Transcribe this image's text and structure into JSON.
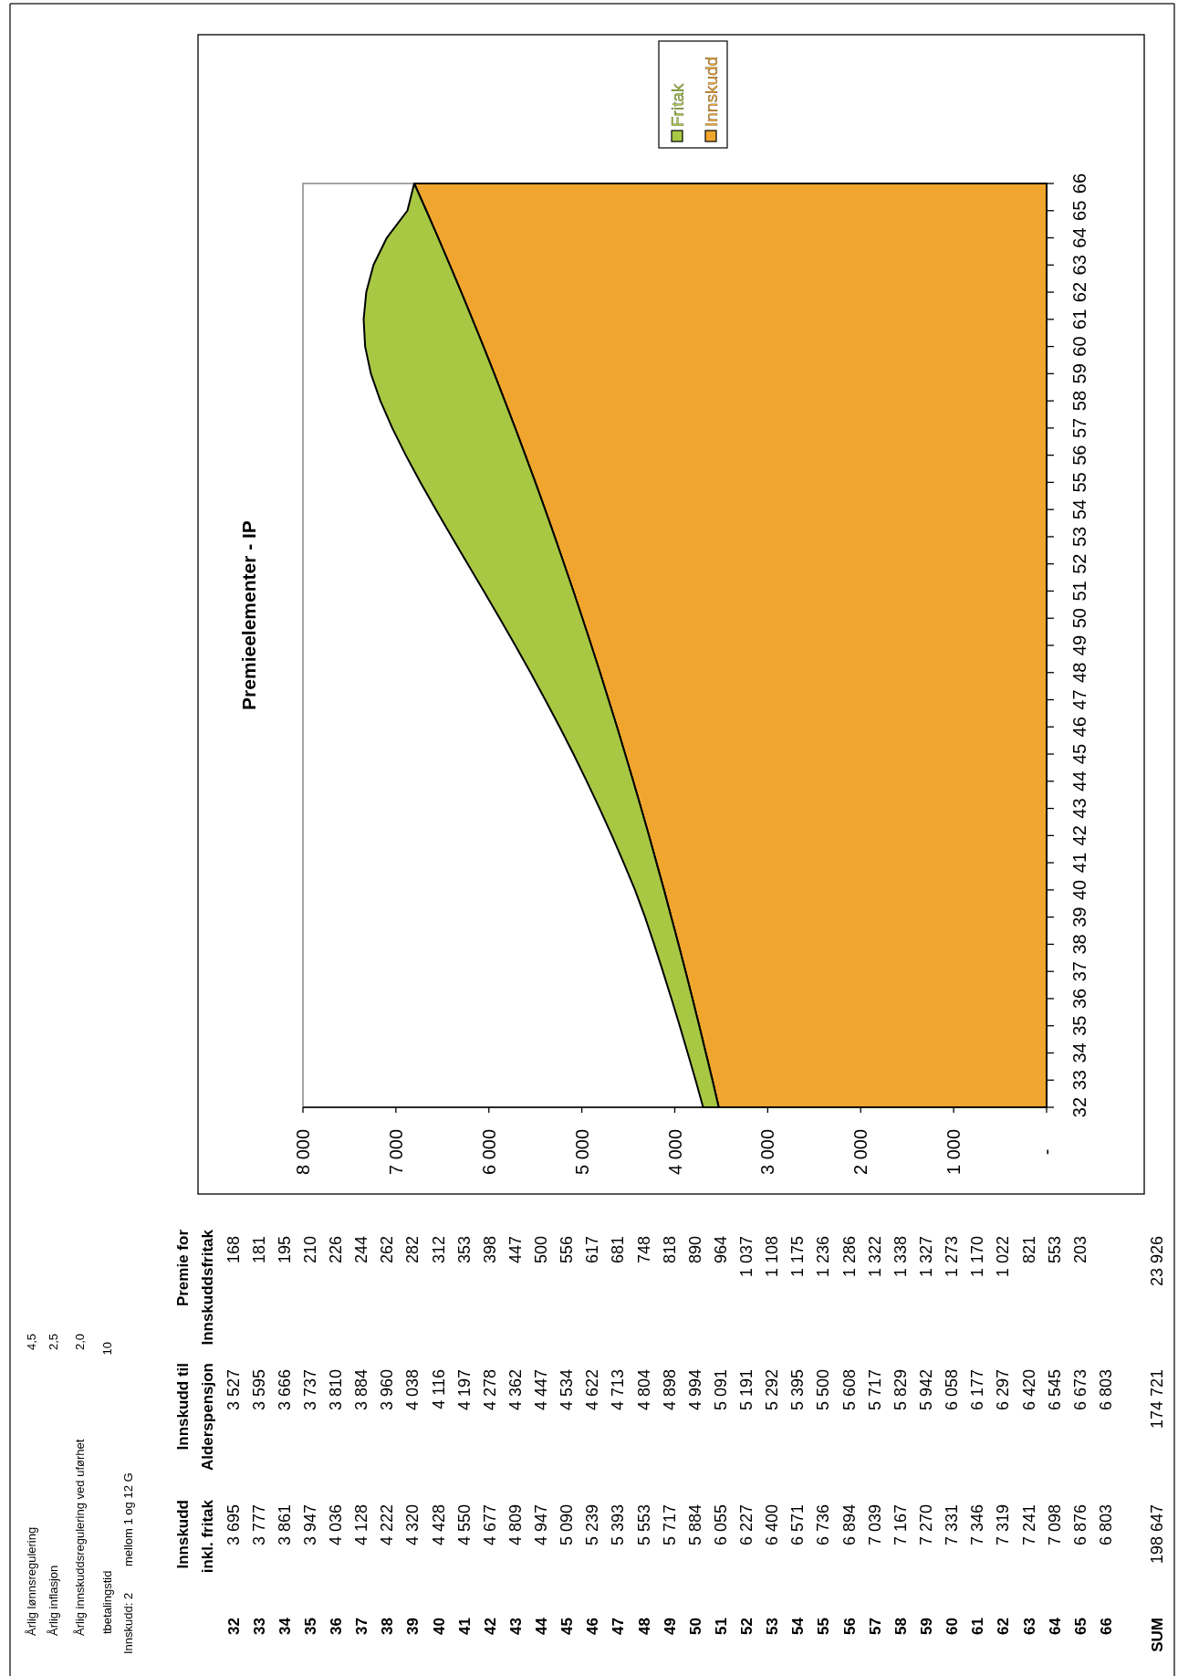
{
  "chart_data": [
    {
      "type": "area",
      "title": "Premieelementer - IP",
      "stacked": true,
      "orientation": "horizontal",
      "legend": "top",
      "categories": [
        "66",
        "65",
        "64",
        "63",
        "62",
        "61",
        "60",
        "59",
        "58",
        "57",
        "56",
        "55",
        "54",
        "53",
        "52",
        "51",
        "50",
        "49",
        "48",
        "47",
        "46",
        "45",
        "44",
        "43",
        "42",
        "41",
        "40",
        "39",
        "38",
        "37",
        "36",
        "35",
        "34",
        "33",
        "32"
      ],
      "series": [
        {
          "name": "Innskudd",
          "color": "#f0a62e",
          "values": [
            6803,
            6673,
            6545,
            6420,
            6297,
            6177,
            6058,
            5942,
            5829,
            5717,
            5608,
            5500,
            5395,
            5292,
            5191,
            5091,
            4994,
            4898,
            4804,
            4713,
            4622,
            4534,
            4447,
            4362,
            4278,
            4197,
            4116,
            4038,
            3960,
            3884,
            3810,
            3737,
            3666,
            3595,
            3527
          ]
        },
        {
          "name": "Fritak",
          "color": "#a8c844",
          "values": [
            0,
            203,
            553,
            821,
            1022,
            1170,
            1273,
            1327,
            1338,
            1322,
            1286,
            1236,
            1175,
            1108,
            1037,
            964,
            890,
            818,
            748,
            681,
            617,
            556,
            500,
            447,
            398,
            353,
            312,
            282,
            262,
            244,
            226,
            210,
            195,
            181,
            168
          ]
        }
      ],
      "xlim": [
        8000,
        0
      ],
      "xticks": [
        {
          "value": 8000,
          "label": "8 000"
        },
        {
          "value": 7000,
          "label": "7 000"
        },
        {
          "value": 6000,
          "label": "6 000"
        },
        {
          "value": 5000,
          "label": "5 000"
        },
        {
          "value": 4000,
          "label": "4 000"
        },
        {
          "value": 3000,
          "label": "3 000"
        },
        {
          "value": 2000,
          "label": "2 000"
        },
        {
          "value": 1000,
          "label": "1 000"
        },
        {
          "value": 0,
          "label": "-"
        }
      ]
    },
    {
      "type": "heatmap",
      "data_labels": true,
      "categories": [
        "32",
        "33",
        "34",
        "35",
        "36",
        "37",
        "38",
        "39",
        "40",
        "41",
        "42",
        "43",
        "44",
        "45",
        "46",
        "47",
        "48",
        "49",
        "50",
        "51",
        "52",
        "53",
        "54",
        "55",
        "56",
        "57",
        "58",
        "59",
        "60",
        "61",
        "62",
        "63",
        "64",
        "65",
        "66"
      ],
      "y_categories": [
        "Premie for\nInnskuddsfritak",
        "Innskudd til\nAlderspensjon",
        "Innskudd\ninkl. fritak"
      ],
      "cells": [
        [
          168,
          181,
          195,
          210,
          226,
          244,
          262,
          282,
          312,
          353,
          398,
          447,
          500,
          556,
          617,
          681,
          748,
          818,
          890,
          964,
          1037,
          1108,
          1175,
          1236,
          1286,
          1322,
          1338,
          1327,
          1273,
          1170,
          1022,
          821,
          553,
          203,
          null
        ],
        [
          3527,
          3595,
          3666,
          3737,
          3810,
          3884,
          3960,
          4038,
          4116,
          4197,
          4278,
          4362,
          4447,
          4534,
          4622,
          4713,
          4804,
          4898,
          4994,
          5091,
          5191,
          5292,
          5395,
          5500,
          5608,
          5717,
          5829,
          5942,
          6058,
          6177,
          6297,
          6420,
          6545,
          6673,
          6803
        ],
        [
          3695,
          3777,
          3861,
          3947,
          4036,
          4128,
          4222,
          4320,
          4428,
          4550,
          4677,
          4809,
          4947,
          5090,
          5239,
          5393,
          5553,
          5717,
          5884,
          6055,
          6227,
          6400,
          6571,
          6736,
          6894,
          7039,
          7167,
          7270,
          7331,
          7346,
          7319,
          7241,
          7098,
          6876,
          6803
        ]
      ],
      "annotations": [
        "Årlig lønnsregulering",
        "4,5",
        "Årlig inflasjon",
        "2,5",
        "Årlig innskuddsregulering ved uførhet",
        "2,0",
        "tbetalingstid",
        "10",
        "Innskudd: 2",
        "mellom 1 og 12 G",
        "SUM",
        "198 647",
        "174 721",
        "23 926"
      ]
    }
  ]
}
